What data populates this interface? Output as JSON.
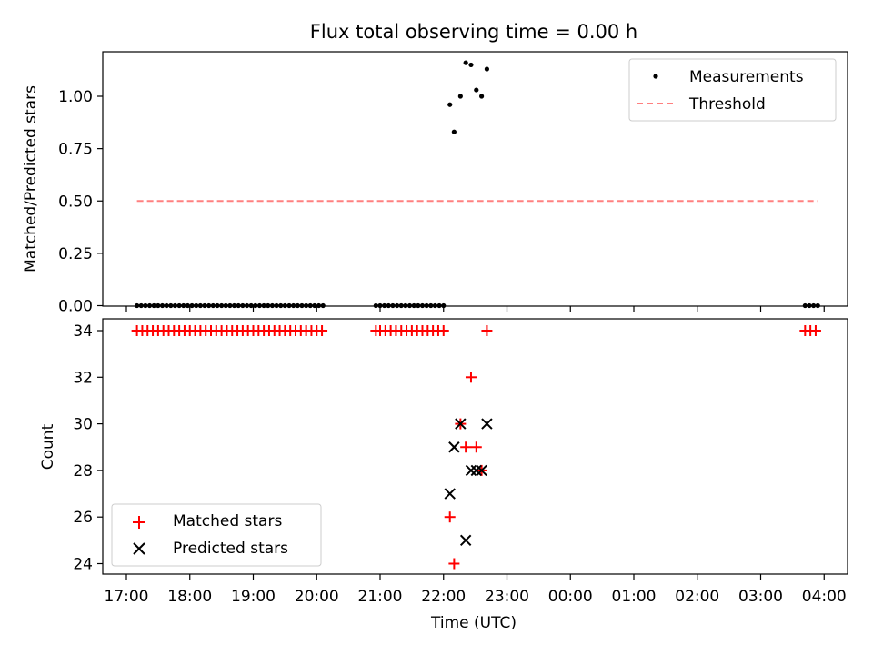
{
  "chart_data": [
    {
      "type": "scatter",
      "title": "Flux total observing time = 0.00 h",
      "ylabel": "Matched/Predicted stars",
      "xlabel": "",
      "xlim": [
        "17:00",
        "04:00"
      ],
      "ylim": [
        0,
        1.2
      ],
      "x_ticks": [
        "17:00",
        "18:00",
        "19:00",
        "20:00",
        "21:00",
        "22:00",
        "23:00",
        "00:00",
        "01:00",
        "02:00",
        "03:00",
        "04:00"
      ],
      "y_ticks": [
        "0.00",
        "0.25",
        "0.50",
        "0.75",
        "1.00"
      ],
      "y_tick_values": [
        0,
        0.25,
        0.5,
        0.75,
        1.0
      ],
      "legend_position": "top-right",
      "series": [
        {
          "name": "Measurements",
          "marker": "dot",
          "color": "#000000",
          "points": [
            [
              "17:10",
              0
            ],
            [
              "17:14",
              0
            ],
            [
              "17:18",
              0
            ],
            [
              "17:22",
              0
            ],
            [
              "17:26",
              0
            ],
            [
              "17:30",
              0
            ],
            [
              "17:34",
              0
            ],
            [
              "17:38",
              0
            ],
            [
              "17:42",
              0
            ],
            [
              "17:46",
              0
            ],
            [
              "17:50",
              0
            ],
            [
              "17:54",
              0
            ],
            [
              "17:58",
              0
            ],
            [
              "18:02",
              0
            ],
            [
              "18:06",
              0
            ],
            [
              "18:10",
              0
            ],
            [
              "18:14",
              0
            ],
            [
              "18:18",
              0
            ],
            [
              "18:22",
              0
            ],
            [
              "18:26",
              0
            ],
            [
              "18:30",
              0
            ],
            [
              "18:34",
              0
            ],
            [
              "18:38",
              0
            ],
            [
              "18:42",
              0
            ],
            [
              "18:46",
              0
            ],
            [
              "18:50",
              0
            ],
            [
              "18:54",
              0
            ],
            [
              "18:58",
              0
            ],
            [
              "19:02",
              0
            ],
            [
              "19:06",
              0
            ],
            [
              "19:10",
              0
            ],
            [
              "19:14",
              0
            ],
            [
              "19:18",
              0
            ],
            [
              "19:22",
              0
            ],
            [
              "19:26",
              0
            ],
            [
              "19:30",
              0
            ],
            [
              "19:34",
              0
            ],
            [
              "19:38",
              0
            ],
            [
              "19:42",
              0
            ],
            [
              "19:46",
              0
            ],
            [
              "19:50",
              0
            ],
            [
              "19:54",
              0
            ],
            [
              "19:58",
              0
            ],
            [
              "20:02",
              0
            ],
            [
              "20:06",
              0
            ],
            [
              "20:56",
              0
            ],
            [
              "21:00",
              0
            ],
            [
              "21:04",
              0
            ],
            [
              "21:08",
              0
            ],
            [
              "21:12",
              0
            ],
            [
              "21:16",
              0
            ],
            [
              "21:20",
              0
            ],
            [
              "21:24",
              0
            ],
            [
              "21:28",
              0
            ],
            [
              "21:32",
              0
            ],
            [
              "21:36",
              0
            ],
            [
              "21:40",
              0
            ],
            [
              "21:44",
              0
            ],
            [
              "21:48",
              0
            ],
            [
              "21:52",
              0
            ],
            [
              "21:56",
              0
            ],
            [
              "22:00",
              0
            ],
            [
              "22:06",
              0.96
            ],
            [
              "22:10",
              0.83
            ],
            [
              "22:16",
              1.0
            ],
            [
              "22:21",
              1.16
            ],
            [
              "22:26",
              1.15
            ],
            [
              "22:31",
              1.03
            ],
            [
              "22:36",
              1.0
            ],
            [
              "22:41",
              1.13
            ],
            [
              "03:42",
              0
            ],
            [
              "03:46",
              0
            ],
            [
              "03:50",
              0
            ],
            [
              "03:54",
              0
            ]
          ]
        },
        {
          "name": "Threshold",
          "marker": "dashed-line",
          "color": "#ff8080",
          "points": [
            [
              "17:10",
              0.5
            ],
            [
              "03:54",
              0.5
            ]
          ]
        }
      ]
    },
    {
      "type": "scatter",
      "title": "",
      "ylabel": "Count",
      "xlabel": "Time (UTC)",
      "xlim": [
        "17:00",
        "04:00"
      ],
      "ylim": [
        23.4,
        34.5
      ],
      "x_ticks": [
        "17:00",
        "18:00",
        "19:00",
        "20:00",
        "21:00",
        "22:00",
        "23:00",
        "00:00",
        "01:00",
        "02:00",
        "03:00",
        "04:00"
      ],
      "y_ticks": [
        "24",
        "26",
        "28",
        "30",
        "32",
        "34"
      ],
      "y_tick_values": [
        24,
        26,
        28,
        30,
        32,
        34
      ],
      "legend_position": "bottom-left",
      "series": [
        {
          "name": "Matched stars",
          "marker": "plus",
          "color": "#ff0000",
          "points": [
            [
              "17:10",
              34
            ],
            [
              "17:15",
              34
            ],
            [
              "17:20",
              34
            ],
            [
              "17:25",
              34
            ],
            [
              "17:30",
              34
            ],
            [
              "17:35",
              34
            ],
            [
              "17:40",
              34
            ],
            [
              "17:45",
              34
            ],
            [
              "17:50",
              34
            ],
            [
              "17:55",
              34
            ],
            [
              "18:00",
              34
            ],
            [
              "18:05",
              34
            ],
            [
              "18:10",
              34
            ],
            [
              "18:15",
              34
            ],
            [
              "18:20",
              34
            ],
            [
              "18:25",
              34
            ],
            [
              "18:30",
              34
            ],
            [
              "18:35",
              34
            ],
            [
              "18:40",
              34
            ],
            [
              "18:45",
              34
            ],
            [
              "18:50",
              34
            ],
            [
              "18:55",
              34
            ],
            [
              "19:00",
              34
            ],
            [
              "19:05",
              34
            ],
            [
              "19:10",
              34
            ],
            [
              "19:15",
              34
            ],
            [
              "19:20",
              34
            ],
            [
              "19:25",
              34
            ],
            [
              "19:30",
              34
            ],
            [
              "19:35",
              34
            ],
            [
              "19:40",
              34
            ],
            [
              "19:45",
              34
            ],
            [
              "19:50",
              34
            ],
            [
              "19:55",
              34
            ],
            [
              "20:00",
              34
            ],
            [
              "20:05",
              34
            ],
            [
              "20:56",
              34
            ],
            [
              "21:00",
              34
            ],
            [
              "21:05",
              34
            ],
            [
              "21:10",
              34
            ],
            [
              "21:15",
              34
            ],
            [
              "21:20",
              34
            ],
            [
              "21:25",
              34
            ],
            [
              "21:30",
              34
            ],
            [
              "21:35",
              34
            ],
            [
              "21:40",
              34
            ],
            [
              "21:45",
              34
            ],
            [
              "21:50",
              34
            ],
            [
              "21:55",
              34
            ],
            [
              "22:00",
              34
            ],
            [
              "22:06",
              26
            ],
            [
              "22:10",
              24
            ],
            [
              "22:16",
              30
            ],
            [
              "22:21",
              29
            ],
            [
              "22:26",
              32
            ],
            [
              "22:31",
              29
            ],
            [
              "22:36",
              28
            ],
            [
              "22:41",
              34
            ],
            [
              "03:42",
              34
            ],
            [
              "03:47",
              34
            ],
            [
              "03:52",
              34
            ]
          ]
        },
        {
          "name": "Predicted stars",
          "marker": "x",
          "color": "#000000",
          "points": [
            [
              "22:06",
              27
            ],
            [
              "22:10",
              29
            ],
            [
              "22:16",
              30
            ],
            [
              "22:21",
              25
            ],
            [
              "22:26",
              28
            ],
            [
              "22:31",
              28
            ],
            [
              "22:36",
              28
            ],
            [
              "22:41",
              30
            ]
          ]
        }
      ]
    }
  ]
}
